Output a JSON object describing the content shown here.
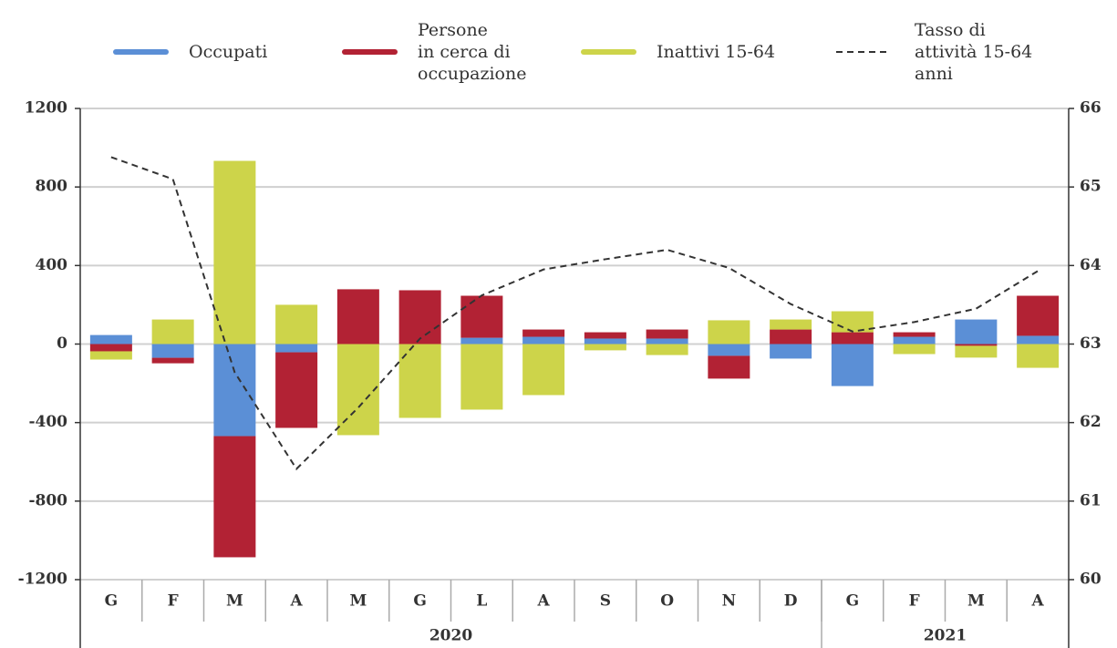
{
  "chart_data": {
    "type": "bar",
    "groups": [
      {
        "label": "2020",
        "categories": [
          "G",
          "F",
          "M",
          "A",
          "M",
          "G",
          "L",
          "A",
          "S",
          "O",
          "N",
          "D"
        ]
      },
      {
        "label": "2021",
        "categories": [
          "G",
          "F",
          "M",
          "A"
        ]
      }
    ],
    "series": [
      {
        "name": "Occupati",
        "color": "#5b8fd6",
        "values": [
          46,
          -70,
          -469,
          -42,
          0,
          0,
          32,
          37,
          28,
          28,
          -60,
          -74,
          -214,
          37,
          125,
          42
        ]
      },
      {
        "name": "Persone\nin cerca di\noccupazione",
        "color": "#b22234",
        "values": [
          -37,
          -28,
          -617,
          -385,
          279,
          274,
          214,
          37,
          32,
          46,
          -116,
          74,
          60,
          23,
          -9,
          204
        ]
      },
      {
        "name": "Inattivi 15-64",
        "color": "#cdd44a",
        "values": [
          -42,
          125,
          933,
          200,
          -464,
          -376,
          -334,
          -260,
          -32,
          -56,
          121,
          51,
          107,
          -51,
          -60,
          -121
        ]
      },
      {
        "name": "Tasso di\nattività 15-64\nanni",
        "type": "line",
        "axis": "y2",
        "color": "#333333",
        "values": [
          65.38,
          65.1,
          62.64,
          61.41,
          62.19,
          63.07,
          63.62,
          63.95,
          64.08,
          64.2,
          63.97,
          63.51,
          63.16,
          63.28,
          63.45,
          63.93
        ]
      }
    ],
    "ylim": [
      -1200,
      1200
    ],
    "yticks": [
      -1200,
      -800,
      -400,
      0,
      400,
      800,
      1200
    ],
    "y2lim": [
      60,
      66
    ],
    "y2ticks": [
      60,
      61,
      62,
      63,
      64,
      65,
      66
    ],
    "grid": true
  }
}
